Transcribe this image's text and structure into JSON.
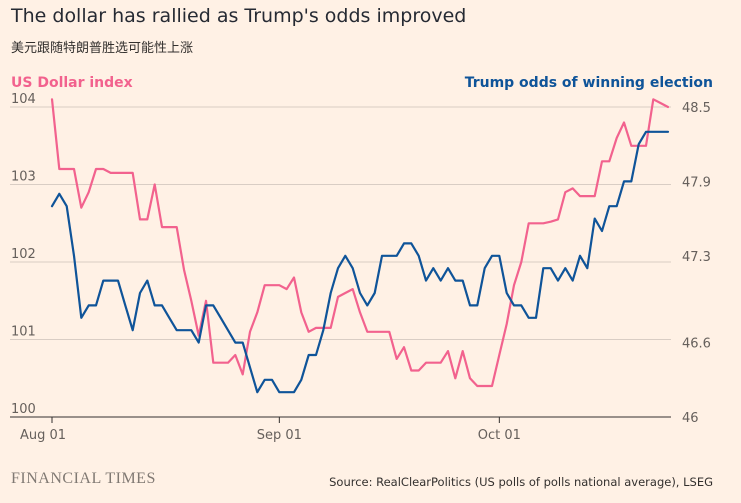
{
  "title": "The dollar has rallied as Trump's odds improved",
  "subtitle": "美元跟随特朗普胜选可能性上涨",
  "left_axis_title": "US Dollar index",
  "right_axis_title": "Trump odds of winning election",
  "source": "Source: RealClearPolitics (US polls of polls national average), LSEG",
  "logo_text": "FINANCIAL TIMES",
  "colors": {
    "dollar": "#f2628e",
    "trump": "#0f5499",
    "grid": "#d9cdc4",
    "text": "#66605c",
    "background": "#fff1e5"
  },
  "chart_data": {
    "type": "line",
    "title": "The dollar has rallied as Trump's odds improved",
    "x_tick_labels": [
      "Aug 01",
      "Sep 01",
      "Oct 01"
    ],
    "x_tick_days": [
      0,
      31,
      61
    ],
    "x_range_days": [
      0,
      84
    ],
    "left_axis": {
      "label": "US Dollar index",
      "ylim": [
        100,
        104
      ],
      "ticks": [
        100,
        101,
        102,
        103,
        104
      ]
    },
    "right_axis": {
      "label": "Trump odds of winning election",
      "ylim": [
        46,
        48.5
      ],
      "ticks": [
        46,
        46.6,
        47.3,
        47.9,
        48.5
      ]
    },
    "series": [
      {
        "name": "US Dollar index",
        "axis": "left",
        "x": [
          0,
          1,
          2,
          3,
          4,
          5,
          6,
          7,
          8,
          9,
          10,
          11,
          12,
          13,
          14,
          15,
          16,
          17,
          18,
          19,
          20,
          21,
          22,
          23,
          24,
          25,
          26,
          27,
          28,
          29,
          30,
          31,
          32,
          33,
          34,
          35,
          36,
          37,
          38,
          39,
          40,
          41,
          42,
          43,
          44,
          45,
          46,
          47,
          48,
          49,
          50,
          51,
          52,
          53,
          54,
          55,
          56,
          57,
          58,
          59,
          60,
          61,
          62,
          63,
          64,
          65,
          66,
          67,
          68,
          69,
          70,
          71,
          72,
          73,
          74,
          75,
          76,
          77,
          78,
          79,
          80,
          81,
          82,
          83,
          84
        ],
        "values": [
          104.1,
          103.2,
          103.2,
          103.2,
          102.7,
          102.9,
          103.2,
          103.2,
          103.15,
          103.15,
          103.15,
          103.15,
          102.55,
          102.55,
          103.0,
          102.45,
          102.45,
          102.45,
          101.9,
          101.5,
          101.05,
          101.5,
          100.7,
          100.7,
          100.7,
          100.8,
          100.55,
          101.1,
          101.35,
          101.7,
          101.7,
          101.7,
          101.65,
          101.8,
          101.35,
          101.1,
          101.15,
          101.15,
          101.15,
          101.55,
          101.6,
          101.65,
          101.35,
          101.1,
          101.1,
          101.1,
          101.1,
          100.75,
          100.9,
          100.6,
          100.6,
          100.7,
          100.7,
          100.7,
          100.85,
          100.5,
          100.85,
          100.5,
          100.4,
          100.4,
          100.4,
          100.8,
          101.2,
          101.7,
          102.0,
          102.5,
          102.5,
          102.5,
          102.52,
          102.55,
          102.9,
          102.95,
          102.85,
          102.85,
          102.85,
          103.3,
          103.3,
          103.6,
          103.8,
          103.5,
          103.5,
          103.5,
          104.1,
          104.05,
          104.0
        ]
      },
      {
        "name": "Trump odds of winning election",
        "axis": "right",
        "x": [
          0,
          1,
          2,
          3,
          4,
          5,
          6,
          7,
          8,
          9,
          10,
          11,
          12,
          13,
          14,
          15,
          16,
          17,
          18,
          19,
          20,
          21,
          22,
          23,
          24,
          25,
          26,
          27,
          28,
          29,
          30,
          31,
          32,
          33,
          34,
          35,
          36,
          37,
          38,
          39,
          40,
          41,
          42,
          43,
          44,
          45,
          46,
          47,
          48,
          49,
          50,
          51,
          52,
          53,
          54,
          55,
          56,
          57,
          58,
          59,
          60,
          61,
          62,
          63,
          64,
          65,
          66,
          67,
          68,
          69,
          70,
          71,
          72,
          73,
          74,
          75,
          76,
          77,
          78,
          79,
          80,
          81,
          82,
          83,
          84
        ],
        "values": [
          47.7,
          47.8,
          47.7,
          47.3,
          46.8,
          46.9,
          46.9,
          47.1,
          47.1,
          47.1,
          46.9,
          46.7,
          47.0,
          47.1,
          46.9,
          46.9,
          46.8,
          46.7,
          46.7,
          46.7,
          46.6,
          46.9,
          46.9,
          46.8,
          46.7,
          46.6,
          46.6,
          46.4,
          46.2,
          46.3,
          46.3,
          46.2,
          46.2,
          46.2,
          46.3,
          46.5,
          46.5,
          46.7,
          47.0,
          47.2,
          47.3,
          47.2,
          47.0,
          46.9,
          47.0,
          47.3,
          47.3,
          47.3,
          47.4,
          47.4,
          47.3,
          47.1,
          47.2,
          47.1,
          47.2,
          47.1,
          47.1,
          46.9,
          46.9,
          47.2,
          47.3,
          47.3,
          47.0,
          46.9,
          46.9,
          46.8,
          46.8,
          47.2,
          47.2,
          47.1,
          47.2,
          47.1,
          47.3,
          47.2,
          47.6,
          47.5,
          47.7,
          47.7,
          47.9,
          47.9,
          48.2,
          48.3,
          48.3,
          48.3,
          48.3
        ]
      }
    ]
  }
}
